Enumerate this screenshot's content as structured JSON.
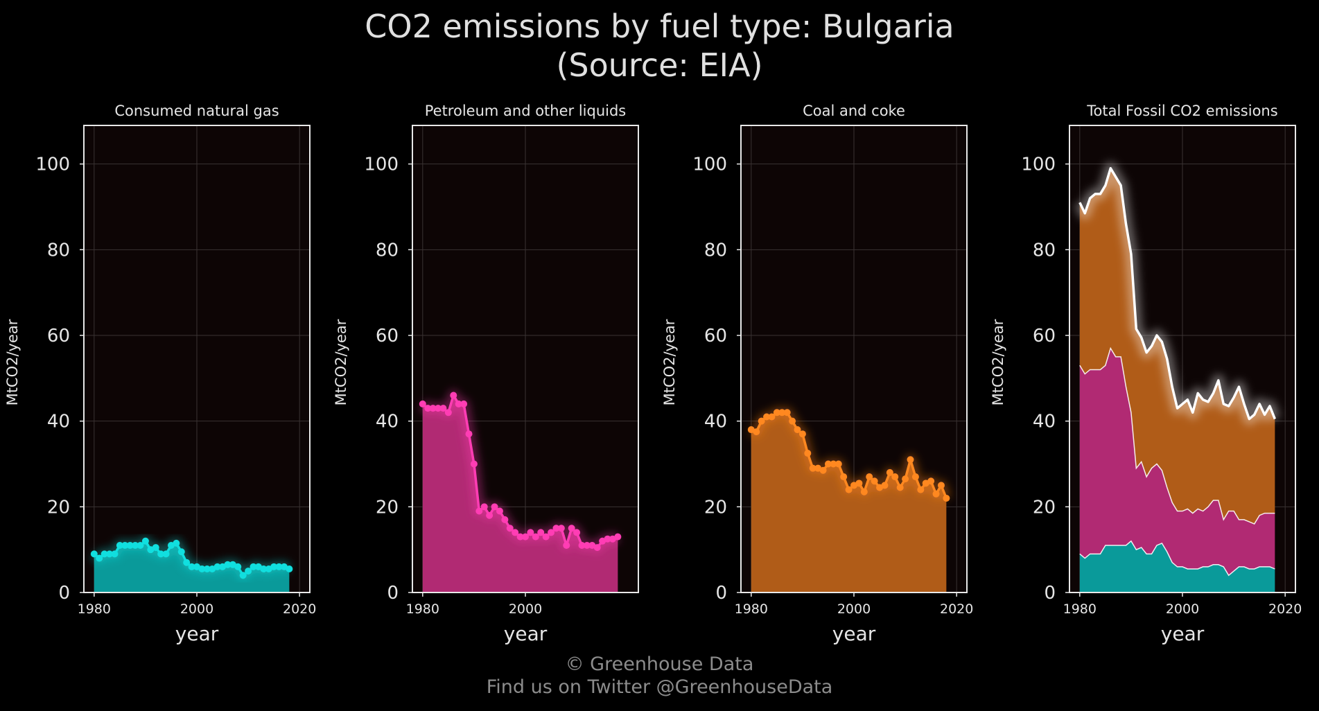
{
  "title": {
    "line1": "CO2 emissions by fuel type: Bulgaria",
    "line2": "(Source: EIA)"
  },
  "footer": {
    "copyright": "© Greenhouse Data",
    "twitter": "Find us on Twitter @GreenhouseData"
  },
  "colors": {
    "background": "#000000",
    "panel_background": "#0d0505",
    "gas": "#11dfdf",
    "gas_fill": "#0a9a9a",
    "petroleum": "#ff3db4",
    "petroleum_fill": "#b12a73",
    "coal": "#ff8820",
    "coal_fill": "#b05c18",
    "total": "#ffffff"
  },
  "chart_data": [
    {
      "type": "area",
      "title": "Consumed natural gas",
      "xlabel": "year",
      "ylabel": "MtCO2/year",
      "xlim": [
        1978,
        2022
      ],
      "ylim": [
        0,
        109
      ],
      "xticks": [
        1980,
        2000,
        2020
      ],
      "yticks": [
        0,
        20,
        40,
        60,
        80,
        100
      ],
      "grid": true,
      "series": [
        {
          "key": "gas",
          "x": [
            1980,
            1981,
            1982,
            1983,
            1984,
            1985,
            1986,
            1987,
            1988,
            1989,
            1990,
            1991,
            1992,
            1993,
            1994,
            1995,
            1996,
            1997,
            1998,
            1999,
            2000,
            2001,
            2002,
            2003,
            2004,
            2005,
            2006,
            2007,
            2008,
            2009,
            2010,
            2011,
            2012,
            2013,
            2014,
            2015,
            2016,
            2017,
            2018
          ],
          "values": [
            9,
            8,
            9,
            9,
            9,
            11,
            11,
            11,
            11,
            11,
            12,
            10,
            10.5,
            9,
            9,
            11,
            11.5,
            9.5,
            7,
            6,
            6,
            5.5,
            5.5,
            5.5,
            6,
            6,
            6.5,
            6.5,
            6,
            4,
            5,
            6,
            6,
            5.5,
            5.5,
            6,
            6,
            6,
            5.5
          ]
        }
      ]
    },
    {
      "type": "area",
      "title": "Petroleum and other liquids",
      "xlabel": "year",
      "ylabel": "MtCO2/year",
      "xlim": [
        1978,
        2022
      ],
      "ylim": [
        0,
        109
      ],
      "xticks": [
        1980,
        2000
      ],
      "yticks": [
        0,
        20,
        40,
        60,
        80,
        100
      ],
      "grid": true,
      "series": [
        {
          "key": "petroleum",
          "x": [
            1980,
            1981,
            1982,
            1983,
            1984,
            1985,
            1986,
            1987,
            1988,
            1989,
            1990,
            1991,
            1992,
            1993,
            1994,
            1995,
            1996,
            1997,
            1998,
            1999,
            2000,
            2001,
            2002,
            2003,
            2004,
            2005,
            2006,
            2007,
            2008,
            2009,
            2010,
            2011,
            2012,
            2013,
            2014,
            2015,
            2016,
            2017,
            2018
          ],
          "values": [
            44,
            43,
            43,
            43,
            43,
            42,
            46,
            44,
            44,
            37,
            30,
            19,
            20,
            18,
            20,
            19,
            17,
            15,
            14,
            13,
            13,
            14,
            13,
            14,
            13,
            14,
            15,
            15,
            11,
            15,
            14,
            11,
            11,
            11,
            10.5,
            12,
            12.5,
            12.5,
            13
          ]
        }
      ]
    },
    {
      "type": "area",
      "title": "Coal and coke",
      "xlabel": "year",
      "ylabel": "MtCO2/year",
      "xlim": [
        1978,
        2022
      ],
      "ylim": [
        0,
        109
      ],
      "xticks": [
        1980,
        2000,
        2020
      ],
      "yticks": [
        0,
        20,
        40,
        60,
        80,
        100
      ],
      "grid": true,
      "series": [
        {
          "key": "coal",
          "x": [
            1980,
            1981,
            1982,
            1983,
            1984,
            1985,
            1986,
            1987,
            1988,
            1989,
            1990,
            1991,
            1992,
            1993,
            1994,
            1995,
            1996,
            1997,
            1998,
            1999,
            2000,
            2001,
            2002,
            2003,
            2004,
            2005,
            2006,
            2007,
            2008,
            2009,
            2010,
            2011,
            2012,
            2013,
            2014,
            2015,
            2016,
            2017,
            2018
          ],
          "values": [
            38,
            37.5,
            40,
            41,
            41,
            42,
            42,
            42,
            40,
            38,
            37,
            32.5,
            29,
            29,
            28.5,
            30,
            30,
            30,
            27,
            24,
            25,
            25.5,
            23.5,
            27,
            26,
            24.5,
            25,
            28,
            27,
            24.5,
            26.5,
            31,
            27,
            24,
            25.5,
            26,
            23,
            25,
            22
          ]
        }
      ]
    },
    {
      "type": "area",
      "title": "Total Fossil CO2 emissions",
      "xlabel": "year",
      "ylabel": "MtCO2/year",
      "xlim": [
        1978,
        2022
      ],
      "ylim": [
        0,
        109
      ],
      "xticks": [
        1980,
        2000,
        2020
      ],
      "yticks": [
        0,
        20,
        40,
        60,
        80,
        100
      ],
      "grid": true,
      "stacked": true,
      "series": [
        {
          "key": "gas",
          "x": [
            1980,
            1981,
            1982,
            1983,
            1984,
            1985,
            1986,
            1987,
            1988,
            1989,
            1990,
            1991,
            1992,
            1993,
            1994,
            1995,
            1996,
            1997,
            1998,
            1999,
            2000,
            2001,
            2002,
            2003,
            2004,
            2005,
            2006,
            2007,
            2008,
            2009,
            2010,
            2011,
            2012,
            2013,
            2014,
            2015,
            2016,
            2017,
            2018
          ],
          "values": [
            9,
            8,
            9,
            9,
            9,
            11,
            11,
            11,
            11,
            11,
            12,
            10,
            10.5,
            9,
            9,
            11,
            11.5,
            9.5,
            7,
            6,
            6,
            5.5,
            5.5,
            5.5,
            6,
            6,
            6.5,
            6.5,
            6,
            4,
            5,
            6,
            6,
            5.5,
            5.5,
            6,
            6,
            6,
            5.5
          ]
        },
        {
          "key": "petroleum",
          "x": [
            1980,
            1981,
            1982,
            1983,
            1984,
            1985,
            1986,
            1987,
            1988,
            1989,
            1990,
            1991,
            1992,
            1993,
            1994,
            1995,
            1996,
            1997,
            1998,
            1999,
            2000,
            2001,
            2002,
            2003,
            2004,
            2005,
            2006,
            2007,
            2008,
            2009,
            2010,
            2011,
            2012,
            2013,
            2014,
            2015,
            2016,
            2017,
            2018
          ],
          "values": [
            44,
            43,
            43,
            43,
            43,
            42,
            46,
            44,
            44,
            37,
            30,
            19,
            20,
            18,
            20,
            19,
            17,
            15,
            14,
            13,
            13,
            14,
            13,
            14,
            13,
            14,
            15,
            15,
            11,
            15,
            14,
            11,
            11,
            11,
            10.5,
            12,
            12.5,
            12.5,
            13
          ]
        },
        {
          "key": "coal",
          "x": [
            1980,
            1981,
            1982,
            1983,
            1984,
            1985,
            1986,
            1987,
            1988,
            1989,
            1990,
            1991,
            1992,
            1993,
            1994,
            1995,
            1996,
            1997,
            1998,
            1999,
            2000,
            2001,
            2002,
            2003,
            2004,
            2005,
            2006,
            2007,
            2008,
            2009,
            2010,
            2011,
            2012,
            2013,
            2014,
            2015,
            2016,
            2017,
            2018
          ],
          "values": [
            38,
            37.5,
            40,
            41,
            41,
            42,
            42,
            42,
            40,
            38,
            37,
            32.5,
            29,
            29,
            28.5,
            30,
            30,
            30,
            27,
            24,
            25,
            25.5,
            23.5,
            27,
            26,
            24.5,
            25,
            28,
            27,
            24.5,
            26.5,
            31,
            27,
            24,
            25.5,
            26,
            23,
            25,
            22
          ]
        }
      ]
    }
  ]
}
